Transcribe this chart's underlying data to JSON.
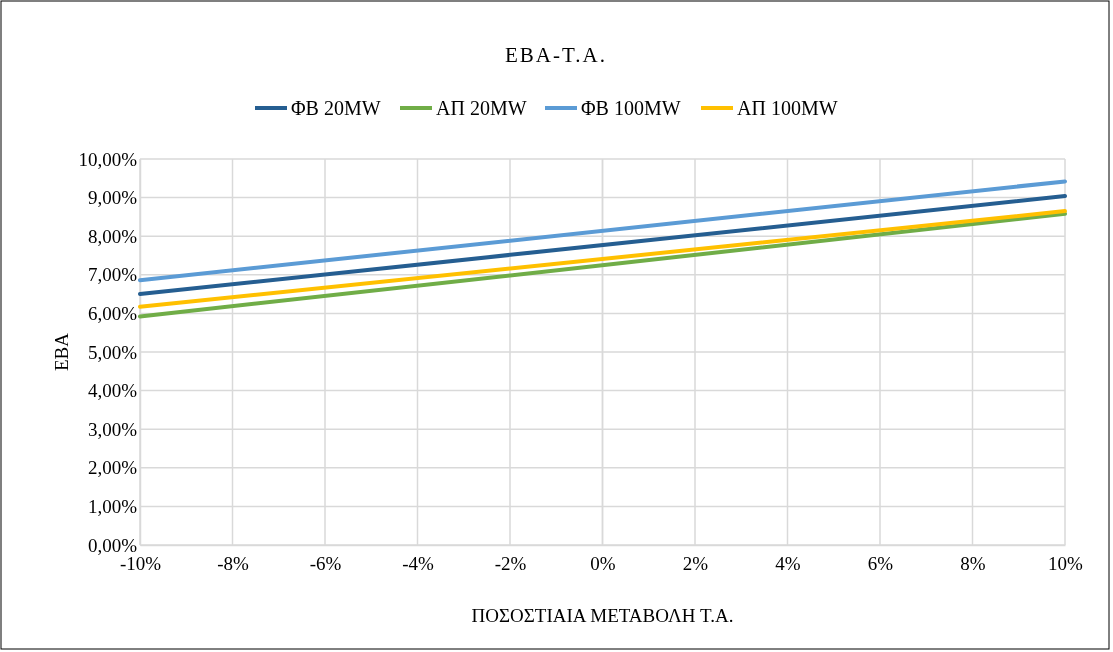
{
  "chart_data": {
    "type": "line",
    "title": "ΕΒΑ-Τ.Α.",
    "xlabel": "ΠΟΣΟΣΤΙΑΙΑ ΜΕΤΑΒΟΛΗ Τ.Α.",
    "ylabel": "ΕΒΑ",
    "x": [
      -10,
      10
    ],
    "series": [
      {
        "name": "ΦΒ 20MW",
        "color": "#255e91",
        "values": [
          6.5,
          9.04
        ]
      },
      {
        "name": "ΑΠ 20MW",
        "color": "#70ad47",
        "values": [
          5.92,
          8.58
        ]
      },
      {
        "name": "ΦΒ 100MW",
        "color": "#5b9bd5",
        "values": [
          6.86,
          9.42
        ]
      },
      {
        "name": "ΑΠ 100MW",
        "color": "#ffc000",
        "values": [
          6.17,
          8.65
        ]
      }
    ],
    "xlim": [
      -10,
      10
    ],
    "xticks": [
      {
        "value": -10,
        "label": "-10%"
      },
      {
        "value": -8,
        "label": "-8%"
      },
      {
        "value": -6,
        "label": "-6%"
      },
      {
        "value": -4,
        "label": "-4%"
      },
      {
        "value": -2,
        "label": "-2%"
      },
      {
        "value": 0,
        "label": "0%"
      },
      {
        "value": 2,
        "label": "2%"
      },
      {
        "value": 4,
        "label": "4%"
      },
      {
        "value": 6,
        "label": "6%"
      },
      {
        "value": 8,
        "label": "8%"
      },
      {
        "value": 10,
        "label": "10%"
      }
    ],
    "ylim": [
      0,
      10
    ],
    "yticks": [
      {
        "value": 0,
        "label": "0,00%"
      },
      {
        "value": 1,
        "label": "1,00%"
      },
      {
        "value": 2,
        "label": "2,00%"
      },
      {
        "value": 3,
        "label": "3,00%"
      },
      {
        "value": 4,
        "label": "4,00%"
      },
      {
        "value": 5,
        "label": "5,00%"
      },
      {
        "value": 6,
        "label": "6,00%"
      },
      {
        "value": 7,
        "label": "7,00%"
      },
      {
        "value": 8,
        "label": "8,00%"
      },
      {
        "value": 9,
        "label": "9,00%"
      },
      {
        "value": 10,
        "label": "10,00%"
      }
    ],
    "grid": true,
    "legend": "top",
    "marker": "none",
    "line_style": "solid"
  }
}
